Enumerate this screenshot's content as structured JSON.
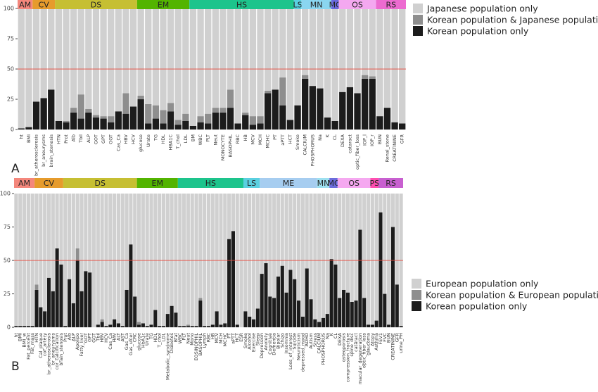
{
  "chart_data": [
    {
      "type": "bar",
      "stacked": true,
      "panel_label": "A",
      "categories": [
        "ht",
        "BMI",
        "br_atherosclerosis",
        "br_aneurysms",
        "brain_stenosis",
        "HTN",
        "Prot",
        "Alb",
        "Tbil",
        "ALP",
        "GOT",
        "GPT",
        "GGT",
        "Cas_Ca",
        "HBV",
        "HCV",
        "glucose",
        "Urate",
        "TG",
        "HDL",
        "HBA1C",
        "T_chol",
        "LDL",
        "BM",
        "WBC",
        "PLT",
        "Neut",
        "MONOCYTE",
        "BASOPHIL",
        "RBC",
        "HB",
        "MCV",
        "MCH",
        "MCHC",
        "PT",
        "aPTT",
        "HCT",
        "Smoke",
        "CALCIUM",
        "PHOSPHORUS",
        "Na",
        "K",
        "CL",
        "DEXA",
        "cataract",
        "optic_fiber_loss",
        "IOP_l",
        "IOP_r",
        "BUN",
        "Renal_stone",
        "CREATININE",
        "GFR"
      ],
      "category_groups": [
        "AM",
        "AM",
        "CV",
        "CV",
        "CV",
        "DS",
        "DS",
        "DS",
        "DS",
        "DS",
        "DS",
        "DS",
        "DS",
        "DS",
        "DS",
        "DS",
        "EM",
        "EM",
        "EM",
        "EM",
        "EM",
        "EM",
        "EM",
        "HS",
        "HS",
        "HS",
        "HS",
        "HS",
        "HS",
        "HS",
        "HS",
        "HS",
        "HS",
        "HS",
        "HS",
        "HS",
        "HS",
        "LS",
        "MN",
        "MN",
        "MN",
        "MN",
        "MC",
        "OS",
        "OS",
        "OS",
        "OS",
        "OS",
        "RS",
        "RS",
        "RS",
        "RS"
      ],
      "group_colors": {
        "AM": "#f4877c",
        "CV": "#e69b2c",
        "DS": "#c6bf33",
        "EM": "#53b400",
        "HS": "#1dc48c",
        "LS": "#5ad0e0",
        "MN": "#8ad6f0",
        "MC": "#6a6adf",
        "OS": "#f4a8f0",
        "RS": "#ec6bd0"
      },
      "series": [
        {
          "name": "Japanese population only",
          "color": "#d0d0d0",
          "values": [
            99,
            98,
            77,
            74,
            67,
            93,
            93,
            82,
            71,
            83,
            88,
            89,
            89,
            85,
            70,
            81,
            72,
            79,
            80,
            84,
            78,
            92,
            87,
            97,
            89,
            87,
            82,
            82,
            67,
            95,
            86,
            89,
            89,
            68,
            67,
            57,
            92,
            80,
            55,
            64,
            66,
            90,
            93,
            69,
            65,
            70,
            55,
            56,
            89,
            82,
            94,
            95
          ]
        },
        {
          "name": "Korean population & Japanese population",
          "color": "#8e8e8e",
          "values": [
            0,
            0,
            0,
            0,
            0,
            0,
            1,
            4,
            20,
            3,
            2,
            2,
            5,
            0,
            17,
            0,
            3,
            16,
            11,
            11,
            7,
            4,
            6,
            0,
            5,
            8,
            4,
            4,
            15,
            0,
            2,
            7,
            6,
            2,
            0,
            23,
            0,
            0,
            3,
            0,
            0,
            0,
            0,
            0,
            0,
            0,
            3,
            2,
            0,
            0,
            0,
            0
          ]
        },
        {
          "name": "Korean population only",
          "color": "#1c1c1c",
          "values": [
            1,
            2,
            23,
            26,
            33,
            7,
            6,
            14,
            9,
            14,
            10,
            9,
            6,
            15,
            13,
            19,
            25,
            5,
            9,
            5,
            15,
            4,
            7,
            3,
            6,
            5,
            14,
            14,
            18,
            5,
            12,
            4,
            5,
            30,
            33,
            20,
            8,
            20,
            42,
            36,
            34,
            10,
            7,
            31,
            35,
            30,
            42,
            42,
            11,
            18,
            6,
            5
          ]
        }
      ],
      "ylim": [
        -2.3,
        107
      ],
      "yticks": [
        0,
        25,
        50,
        75,
        100
      ],
      "hline": 50,
      "hline_color": "#e8473a"
    },
    {
      "type": "bar",
      "stacked": true,
      "panel_label": "B",
      "categories": [
        "ht",
        "BMI",
        "BMI_w",
        "Fat_percent",
        "Fat_mass",
        "HTN",
        "Cal_plaque",
        "cor_artery",
        "br_atherosclerosis",
        "br_aneurysms",
        "cor_calcification",
        "brain_stenosis",
        "Prot",
        "Alb",
        "ALP",
        "Apolipo",
        "Fatty_liver",
        "GOT",
        "GPT",
        "GGT",
        "Tbil",
        "HBV",
        "HCV",
        "Cas_Ca",
        "HAV",
        "ALT",
        "AST",
        "Gas_Ca",
        "Gas_ulcer",
        "CRC",
        "glucose",
        "HbA1c",
        "Urate",
        "TG",
        "HDL",
        "T_chol",
        "LDL",
        "Metabolic_syndrome",
        "Diabetes",
        "Bfat",
        "WBC",
        "PLT",
        "Neut",
        "Mono",
        "EOSINOPHIL",
        "BASOPHIL",
        "Lymph",
        "RBC",
        "HB",
        "MCV",
        "MCH",
        "MCHC",
        "PT",
        "aPTT",
        "HCT",
        "ESR",
        "Smoke",
        "Alcohol",
        "Exercise",
        "Sleep",
        "Depression",
        "Anxiety",
        "Cognitive",
        "Dementia",
        "Bipolar",
        "Schizo",
        "Insomnia",
        "Loss_of_interest",
        "Suicide",
        "Neuroticism",
        "depressed_mood",
        "ADHD",
        "Autism",
        "Stress",
        "CALCIUM",
        "PHOSPHORUS",
        "Na",
        "K",
        "CL",
        "DEXA",
        "osteoporosis",
        "compression_fracture",
        "spine_disc",
        "cataract",
        "macular_degeneration",
        "optic_fiber_loss",
        "glaucoma",
        "Atopy",
        "Asthma",
        "FEV1",
        "FVC",
        "BUN",
        "CREATININE",
        "GFR",
        "urine_PH"
      ],
      "category_groups": [
        "AM",
        "AM",
        "AM",
        "AM",
        "AM",
        "CV",
        "CV",
        "CV",
        "CV",
        "CV",
        "CV",
        "CV",
        "DS",
        "DS",
        "DS",
        "DS",
        "DS",
        "DS",
        "DS",
        "DS",
        "DS",
        "DS",
        "DS",
        "DS",
        "DS",
        "DS",
        "DS",
        "DS",
        "DS",
        "DS",
        "EM",
        "EM",
        "EM",
        "EM",
        "EM",
        "EM",
        "EM",
        "EM",
        "EM",
        "EM",
        "HS",
        "HS",
        "HS",
        "HS",
        "HS",
        "HS",
        "HS",
        "HS",
        "HS",
        "HS",
        "HS",
        "HS",
        "HS",
        "HS",
        "HS",
        "HS",
        "LS",
        "LS",
        "LS",
        "LS",
        "ME",
        "ME",
        "ME",
        "ME",
        "ME",
        "ME",
        "ME",
        "ME",
        "ME",
        "ME",
        "ME",
        "ME",
        "ME",
        "ME",
        "MN",
        "MN",
        "MN",
        "MC",
        "MC",
        "OS",
        "OS",
        "OS",
        "OS",
        "OS",
        "OS",
        "OS",
        "OS",
        "PS",
        "PS",
        "RS",
        "RS",
        "RS",
        "RS",
        "RS",
        "RS"
      ],
      "group_colors": {
        "AM": "#f4877c",
        "CV": "#e69b2c",
        "DS": "#c6bf33",
        "EM": "#53b400",
        "HS": "#1dc48c",
        "LS": "#5ad0e0",
        "ME": "#a6cdf0",
        "MN": "#9de0f0",
        "MC": "#6c6cdc",
        "OS": "#f5a8f0",
        "PS": "#ff4fb0",
        "RS": "#c860d0"
      },
      "series": [
        {
          "name": "European population only",
          "color": "#d0d0d0",
          "values": [
            99,
            99,
            99,
            99,
            99,
            68,
            85,
            88,
            63,
            73,
            41,
            53,
            99,
            64,
            82,
            41,
            73,
            58,
            59,
            100,
            98,
            94,
            99,
            98,
            94,
            97,
            99,
            72,
            38,
            77,
            96,
            97,
            99,
            98,
            87,
            99,
            99,
            90,
            84,
            89,
            99,
            99,
            98,
            99,
            99,
            78,
            99,
            99,
            98,
            88,
            98,
            97,
            34,
            28,
            98,
            100,
            88,
            92,
            94,
            86,
            60,
            52,
            77,
            78,
            62,
            54,
            74,
            57,
            64,
            80,
            92,
            56,
            79,
            94,
            96,
            93,
            90,
            49,
            53,
            78,
            72,
            74,
            81,
            80,
            27,
            78,
            98,
            98,
            95,
            14,
            75,
            98,
            25,
            68,
            99
          ]
        },
        {
          "name": "Korean population & European population",
          "color": "#8e8e8e",
          "values": [
            0,
            0,
            0,
            0,
            0,
            4,
            0,
            0,
            0,
            0,
            0,
            0,
            0,
            0,
            0,
            9,
            0,
            0,
            0,
            0,
            0,
            2,
            0,
            0,
            0,
            0,
            0,
            0,
            0,
            0,
            2,
            0,
            0,
            0,
            0,
            0,
            0,
            0,
            0,
            0,
            0,
            0,
            1,
            0,
            0,
            2,
            0,
            0,
            0,
            0,
            0,
            0,
            0,
            0,
            0,
            0,
            0,
            0,
            0,
            0,
            0,
            0,
            0,
            0,
            0,
            0,
            0,
            0,
            0,
            0,
            0,
            0,
            0,
            0,
            0,
            0,
            0,
            0,
            0,
            0,
            0,
            0,
            0,
            0,
            0,
            0,
            0,
            0,
            0,
            0,
            0,
            0,
            0,
            0,
            0
          ]
        },
        {
          "name": "Korean population only",
          "color": "#1c1c1c",
          "values": [
            1,
            1,
            1,
            1,
            1,
            28,
            15,
            12,
            37,
            27,
            59,
            47,
            1,
            36,
            18,
            50,
            27,
            42,
            41,
            0,
            2,
            4,
            1,
            2,
            6,
            3,
            1,
            28,
            62,
            23,
            2,
            3,
            1,
            2,
            13,
            1,
            1,
            10,
            16,
            11,
            1,
            1,
            1,
            1,
            1,
            20,
            1,
            1,
            2,
            12,
            2,
            3,
            66,
            72,
            2,
            0,
            12,
            8,
            6,
            14,
            40,
            48,
            23,
            22,
            38,
            46,
            26,
            43,
            36,
            20,
            8,
            44,
            21,
            6,
            4,
            7,
            10,
            51,
            47,
            22,
            28,
            26,
            19,
            20,
            73,
            22,
            2,
            2,
            5,
            86,
            25,
            2,
            75,
            32,
            1
          ]
        }
      ],
      "ylim": [
        -2.6,
        111.6
      ],
      "yticks": [
        0,
        25,
        50,
        75,
        100
      ],
      "hline": 50,
      "hline_color": "#e8473a"
    }
  ]
}
